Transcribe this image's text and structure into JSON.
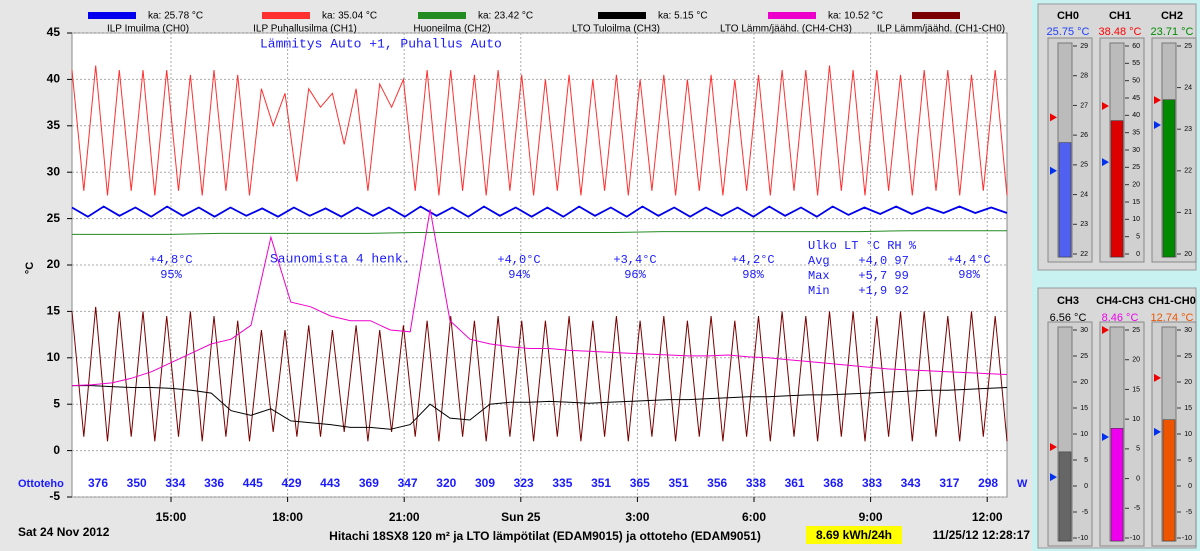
{
  "chart_data": {
    "type": "line",
    "y_label": "°C",
    "ylim": [
      -5,
      45
    ],
    "yticks": [
      -5,
      0,
      5,
      10,
      15,
      20,
      25,
      30,
      35,
      40,
      45
    ],
    "grid": true,
    "xticks": [
      "15:00",
      "18:00",
      "21:00",
      "Sun 25",
      "3:00",
      "6:00",
      "9:00",
      "12:00"
    ],
    "mode_text": "Lämmitys Auto +1, Puhallus Auto",
    "event_text": "Saunomista 4 henk.",
    "series": [
      {
        "name": "ILP Imuilma (CH0)",
        "legend_text": "ka: 25.78 °C",
        "color": "#0000ee",
        "values": [
          26.2,
          25.2,
          26.3,
          25.3,
          26.2,
          25.2,
          26.3,
          25.3,
          26.2,
          25.2,
          26.2,
          25.3,
          26.1,
          25.2,
          26.2,
          25.3,
          26.1,
          25.2,
          26.2,
          25.3,
          26.2,
          25.2,
          26.3,
          25.3,
          26.2,
          25.2,
          26.3,
          25.3,
          26.2,
          25.2,
          26.2,
          25.2,
          26.3,
          25.3,
          26.2,
          25.2,
          26.3,
          25.3,
          26.2,
          25.2,
          26.2,
          25.3,
          26.2,
          25.2,
          26.3,
          25.3,
          26.2,
          25.2,
          26.3,
          25.4,
          26.2,
          25.5,
          26.3,
          25.5,
          26.2,
          25.6,
          26.3,
          25.6,
          26.2,
          25.6
        ]
      },
      {
        "name": "ILP Puhallusilma (CH1)",
        "legend_text": "ka: 35.04 °C",
        "color": "#ff3030",
        "values": [
          41,
          28,
          41.5,
          27.5,
          41,
          28,
          41,
          27.5,
          41,
          28,
          40.5,
          27.5,
          41,
          28,
          40.5,
          27.5,
          39,
          35,
          38.5,
          29,
          39,
          37,
          38.5,
          33,
          39,
          28,
          39.5,
          37,
          40,
          28,
          41,
          27.5,
          41,
          28,
          40.5,
          27.5,
          41,
          28,
          40.5,
          27.5,
          40,
          28,
          40.5,
          27.5,
          40,
          28,
          40.5,
          27.5,
          40,
          28,
          40.5,
          27.5,
          40,
          28,
          40.5,
          27.5,
          40,
          28,
          40.5,
          27.5,
          41,
          28,
          41,
          27.5,
          41.5,
          28,
          41,
          27.5,
          41,
          28,
          40.5,
          27.5,
          41,
          28,
          41,
          27.5,
          40.5,
          28,
          41,
          27.5
        ]
      },
      {
        "name": "Huoneilma (CH2)",
        "legend_text": "ka: 23.42 °C",
        "color": "#228b22",
        "values": [
          23.3,
          23.3,
          23.3,
          23.4,
          23.4,
          23.4,
          23.4,
          23.5,
          23.5,
          23.5,
          23.5,
          23.5,
          23.6,
          23.6,
          23.6,
          23.6,
          23.6,
          23.7,
          23.7,
          23.7
        ]
      },
      {
        "name": "LTO Tuloilma (CH3)",
        "legend_text": "ka: 5.15 °C",
        "color": "#000000",
        "values": [
          7,
          7,
          6.9,
          6.8,
          6.8,
          6.7,
          6.5,
          6.2,
          4.3,
          3.8,
          4.5,
          3.2,
          3,
          2.8,
          2.5,
          2.5,
          2.3,
          2.8,
          5,
          3.5,
          3.3,
          5,
          5.2,
          5.2,
          5.3,
          5.2,
          5.1,
          5.2,
          5.3,
          5.4,
          5.5,
          5.5,
          5.6,
          5.7,
          5.8,
          5.8,
          5.9,
          6,
          6,
          6.1,
          6.2,
          6.3,
          6.4,
          6.5,
          6.5,
          6.6,
          6.7,
          6.8
        ]
      },
      {
        "name": "LTO Lämm/jäähd. (CH4-CH3)",
        "legend_text": "ka: 10.52 °C",
        "color": "#ee00cc",
        "values": [
          7,
          7.1,
          7.3,
          7.8,
          8.5,
          9.5,
          10.5,
          11.5,
          12,
          13.5,
          23,
          16,
          15.5,
          14.5,
          14,
          14,
          13,
          12.8,
          26,
          14,
          12,
          11.5,
          11.2,
          11,
          11,
          10.8,
          10.7,
          10.6,
          10.5,
          10.4,
          10.3,
          10.2,
          10.2,
          10.3,
          10.1,
          10,
          9.8,
          9.6,
          9.4,
          9.2,
          9,
          8.8,
          8.7,
          8.6,
          8.5,
          8.4,
          8.3,
          8.2
        ]
      },
      {
        "name": "ILP Lämm/jäähd. (CH1-CH0)",
        "legend_text": "",
        "color": "#7a0000",
        "values": [
          15,
          1.5,
          15.5,
          1,
          15,
          1.5,
          15,
          1,
          14.5,
          1.5,
          15,
          1,
          14.5,
          1.5,
          14,
          1,
          13,
          2,
          13,
          1.5,
          13.5,
          1.5,
          13,
          2,
          13.5,
          1,
          13,
          2,
          13.5,
          1.5,
          14,
          1,
          14.5,
          1.5,
          14,
          1,
          14.5,
          1.5,
          14,
          1,
          14,
          1.5,
          14.5,
          1,
          14,
          1.5,
          14.5,
          1,
          14,
          1.5,
          14.5,
          1,
          14,
          1.5,
          14.5,
          1,
          14,
          1.5,
          14.5,
          1,
          15,
          1.5,
          14.5,
          1,
          15,
          1.5,
          15,
          1,
          14.5,
          1.5,
          15,
          1,
          15,
          1.5,
          14.5,
          1,
          15,
          1.5,
          14.5,
          1
        ]
      }
    ],
    "temp_notes": [
      {
        "temp": "+4,8°C",
        "rh": "95%"
      },
      {
        "temp": "+4,0°C",
        "rh": "94%"
      },
      {
        "temp": "+3,4°C",
        "rh": "96%"
      },
      {
        "temp": "+4,2°C",
        "rh": "98%"
      },
      {
        "temp": "+4,4°C",
        "rh": "98%"
      }
    ],
    "stats": [
      "Ulko LT °C RH %",
      "Avg    +4,0 97",
      "Max    +5,7 99",
      "Min    +1,9 92"
    ],
    "power": {
      "label": "Ottoteho",
      "unit": "W",
      "values": [
        376,
        350,
        334,
        336,
        445,
        429,
        443,
        369,
        347,
        320,
        309,
        323,
        335,
        351,
        365,
        351,
        356,
        338,
        361,
        368,
        383,
        343,
        317,
        298
      ]
    },
    "date": "Sat 24 Nov 2012",
    "footer": "Hitachi 18SX8 120 m² ja LTO lämpötilat (EDAM9015) ja ottoteho (EDAM9051)",
    "energy": "8.69  kWh/24h",
    "timestamp": "11/25/12 12:28:17",
    "gauges": [
      {
        "name": "CH0",
        "value": 25.75,
        "value_label": "25.75 °C",
        "color": "#5060f0",
        "text_color": "#2040ff",
        "ylim": [
          22,
          29
        ],
        "yticks": [
          22,
          23,
          24,
          25,
          26,
          27,
          28,
          29
        ],
        "high": 26.6,
        "low": 24.8
      },
      {
        "name": "CH1",
        "value": 38.48,
        "value_label": "38.48 °C",
        "color": "#dd0000",
        "text_color": "#ff0000",
        "ylim": [
          0,
          60
        ],
        "yticks": [
          0,
          5,
          10,
          15,
          20,
          25,
          30,
          35,
          40,
          45,
          50,
          55,
          60
        ],
        "high": 42.7,
        "low": 26.5
      },
      {
        "name": "CH2",
        "value": 23.71,
        "value_label": "23.71 °C",
        "color": "#008a00",
        "text_color": "#008a00",
        "ylim": [
          20,
          25
        ],
        "yticks": [
          20,
          21,
          22,
          23,
          24,
          25
        ],
        "high": 23.7,
        "low": 23.1
      },
      {
        "name": "CH3",
        "value": 6.56,
        "value_label": "6.56 °C",
        "color": "#666666",
        "text_color": "#000000",
        "ylim": [
          -10,
          30
        ],
        "yticks": [
          -10,
          -5,
          0,
          5,
          10,
          15,
          20,
          25,
          30
        ],
        "high": 7.5,
        "low": 1.7
      },
      {
        "name": "CH4-CH3",
        "value": 8.46,
        "value_label": "8.46 °C",
        "color": "#ee00ee",
        "text_color": "#ee00ee",
        "ylim": [
          -10,
          25
        ],
        "yticks": [
          -10,
          -5,
          0,
          5,
          10,
          15,
          20,
          25
        ],
        "high": 25,
        "low": 7
      },
      {
        "name": "CH1-CH0",
        "value": 12.74,
        "value_label": "12.74 °C",
        "color": "#ee5500",
        "text_color": "#ee5500",
        "ylim": [
          -10,
          30
        ],
        "yticks": [
          -10,
          -5,
          0,
          5,
          10,
          15,
          20,
          25,
          30
        ],
        "high": 20.8,
        "low": 10.4
      }
    ]
  }
}
